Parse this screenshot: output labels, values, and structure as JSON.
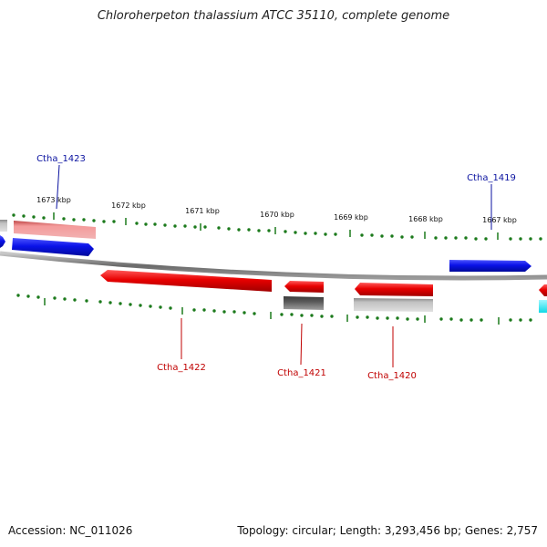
{
  "title": "Chloroherpeton thalassium ATCC 35110, complete genome",
  "footer": {
    "accession": "Accession: NC_011026",
    "summary": "Topology: circular; Length: 3,293,456 bp; Genes: 2,757"
  },
  "ticks": [
    "1673 kbp",
    "1672 kbp",
    "1671 kbp",
    "1670 kbp",
    "1669 kbp",
    "1668 kbp",
    "1667 kbp"
  ],
  "genes": {
    "ctha_1423": "Ctha_1423",
    "ctha_1422": "Ctha_1422",
    "ctha_1421": "Ctha_1421",
    "ctha_1420": "Ctha_1420",
    "ctha_1419": "Ctha_1419"
  },
  "colors": {
    "forward": "#0a12e8",
    "reverse": "#e80000",
    "pink": "#ec8a8a",
    "gray": "#a8a8a8",
    "dark": "#585858",
    "cyan": "#18e8f0",
    "tick": "#1c7a1c"
  }
}
